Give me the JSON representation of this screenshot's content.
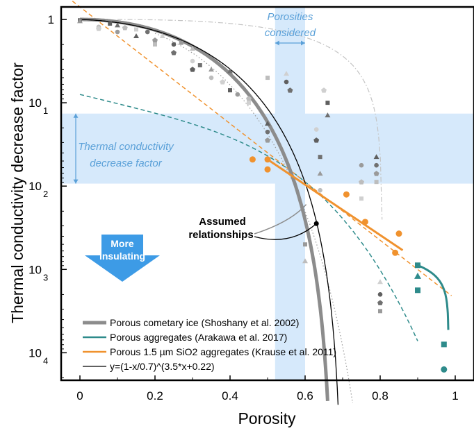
{
  "chart_data": {
    "type": "scatter",
    "title": "",
    "xlabel": "Porosity",
    "ylabel": "Thermal conductivity decrease factor",
    "xlim": [
      -0.05,
      1.05
    ],
    "y_axis": {
      "scale": "log",
      "inverted": true,
      "range_decades": [
        -0.15,
        4.33
      ]
    },
    "x_ticks": [
      {
        "value": 0,
        "label": "0"
      },
      {
        "value": 0.2,
        "label": "0.2"
      },
      {
        "value": 0.4,
        "label": "0.4"
      },
      {
        "value": 0.6,
        "label": "0.6"
      },
      {
        "value": 0.8,
        "label": "0.8"
      },
      {
        "value": 1,
        "label": "1"
      }
    ],
    "y_ticks": [
      {
        "decade": 0,
        "base": "1",
        "exp": ""
      },
      {
        "decade": 1,
        "base": "10",
        "exp": "1"
      },
      {
        "decade": 2,
        "base": "10",
        "exp": "2"
      },
      {
        "decade": 3,
        "base": "10",
        "exp": "3"
      },
      {
        "decade": 4,
        "base": "10",
        "exp": "4"
      }
    ],
    "shaded_regions": {
      "porosities_considered": {
        "x": [
          0.52,
          0.6
        ],
        "label_line1": "Porosities",
        "label_line2": "considered",
        "color": "#d6e9fb"
      },
      "decrease_factor": {
        "decades": [
          1.13,
          1.97
        ],
        "label_line1": "Thermal conductivity",
        "label_line2": "decrease factor",
        "color": "#d6e9fb"
      }
    },
    "annotations": {
      "assumed_line1": "Assumed",
      "assumed_line2": "relationships",
      "insulating_line1": "More",
      "insulating_line2": "insulating"
    },
    "legend": {
      "position": "bottom-left",
      "entries": [
        {
          "label": "Porous cometary ice (Shoshany et al. 2002)",
          "color": "#8c8c8c"
        },
        {
          "label": "Porous aggregates (Arakawa et al. 2017)",
          "color": "#2e8b8b"
        },
        {
          "label": "Porous 1.5 µm SiO2 aggregates (Krause et al. 2011)",
          "color": "#f0922e"
        },
        {
          "label": "y=(1-x/0.7)^(3.5*x+0.22)",
          "color": "#000000"
        }
      ]
    },
    "colors": {
      "gray": "#8c8c8c",
      "teal": "#2e8b8b",
      "orange": "#f0922e",
      "black": "#000000",
      "blue": "#5aa0d8"
    },
    "series": {
      "orange_points": [
        [
          0.46,
          1.68
        ],
        [
          0.5,
          1.68
        ],
        [
          0.5,
          1.8
        ],
        [
          0.71,
          2.1
        ],
        [
          0.76,
          2.43
        ],
        [
          0.84,
          2.8
        ],
        [
          0.85,
          2.57
        ]
      ],
      "orange_fit": [
        [
          0.5,
          1.68
        ],
        [
          0.86,
          2.77
        ]
      ],
      "teal_points": [
        [
          0.9,
          2.95
        ],
        [
          0.9,
          3.08
        ],
        [
          0.9,
          3.25
        ],
        [
          0.97,
          3.9
        ],
        [
          0.97,
          4.2
        ]
      ],
      "gray_points": [
        [
          0,
          0.01
        ],
        [
          0,
          0.02
        ],
        [
          0.05,
          0.09
        ],
        [
          0.05,
          0.11
        ],
        [
          0.08,
          0.05
        ],
        [
          0.1,
          0.07
        ],
        [
          0.1,
          0.15
        ],
        [
          0.12,
          0.1
        ],
        [
          0.15,
          0.12
        ],
        [
          0.15,
          0.2
        ],
        [
          0.18,
          0.15
        ],
        [
          0.2,
          0.25
        ],
        [
          0.2,
          0.3
        ],
        [
          0.22,
          0.2
        ],
        [
          0.25,
          0.3
        ],
        [
          0.25,
          0.4
        ],
        [
          0.27,
          0.28
        ],
        [
          0.3,
          0.35
        ],
        [
          0.3,
          0.5
        ],
        [
          0.3,
          0.6
        ],
        [
          0.32,
          0.55
        ],
        [
          0.35,
          0.6
        ],
        [
          0.35,
          0.7
        ],
        [
          0.38,
          0.75
        ],
        [
          0.4,
          0.85
        ],
        [
          0.4,
          0.62
        ],
        [
          0.42,
          0.9
        ],
        [
          0.45,
          0.95
        ],
        [
          0.45,
          1.0
        ],
        [
          0.5,
          1.25
        ],
        [
          0.5,
          1.35
        ],
        [
          0.5,
          1.45
        ],
        [
          0.5,
          0.7
        ],
        [
          0.55,
          0.65
        ],
        [
          0.55,
          0.75
        ],
        [
          0.56,
          0.85
        ],
        [
          0.6,
          2.7
        ],
        [
          0.6,
          2.9
        ],
        [
          0.63,
          1.32
        ],
        [
          0.63,
          1.45
        ],
        [
          0.64,
          1.65
        ],
        [
          0.64,
          1.85
        ],
        [
          0.64,
          2.05
        ],
        [
          0.65,
          0.85
        ],
        [
          0.66,
          1.0
        ],
        [
          0.66,
          1.15
        ],
        [
          0.75,
          1.75
        ],
        [
          0.75,
          1.95
        ],
        [
          0.75,
          2.15
        ],
        [
          0.79,
          1.65
        ],
        [
          0.79,
          1.75
        ],
        [
          0.79,
          1.85
        ],
        [
          0.79,
          1.95
        ],
        [
          0.8,
          3.15
        ],
        [
          0.8,
          3.3
        ],
        [
          0.8,
          3.4
        ],
        [
          0.8,
          3.5
        ]
      ]
    }
  }
}
